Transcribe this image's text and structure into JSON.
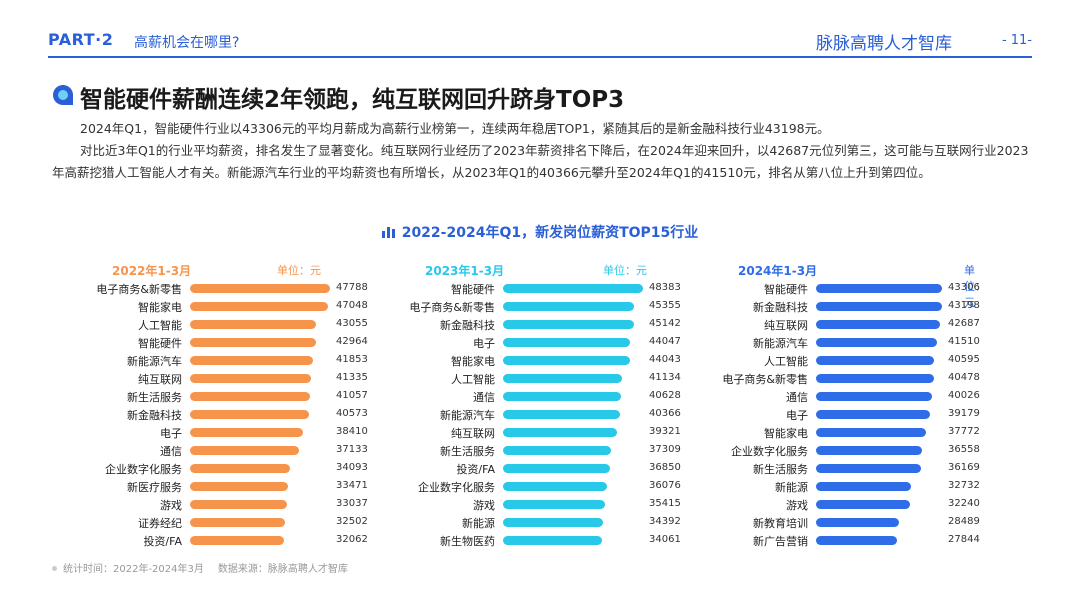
{
  "header": {
    "part": "PART·2",
    "section_question": "高薪机会在哪里?",
    "brand": "脉脉高聘人才智库",
    "page_number": "- 11-"
  },
  "headline": "智能硬件薪酬连续2年领跑，纯互联网回升跻身TOP3",
  "paragraphs": [
    "2024年Q1，智能硬件行业以43306元的平均月薪成为高薪行业榜第一，连续两年稳居TOP1，紧随其后的是新金融科技行业43198元。",
    "对比近3年Q1的行业平均薪资，排名发生了显著变化。纯互联网行业经历了2023年薪资排名下降后，在2024年迎来回升，以42687元位列第三，这可能与互联网行业2023年高薪挖猎人工智能人才有关。新能源汽车行业的平均薪资也有所增长，从2023年Q1的40366元攀升至2024年Q1的41510元，排名从第八位上升到第四位。"
  ],
  "chart_title": "2022-2024年Q1，新发岗位薪资TOP15行业",
  "colors": {
    "brand": "#2a5fd8"
  },
  "chart_data": [
    {
      "type": "bar",
      "orientation": "horizontal",
      "title": "2022年1-3月",
      "unit": "单位：元",
      "color": "#f7944c",
      "categories": [
        "电子商务&新零售",
        "智能家电",
        "人工智能",
        "智能硬件",
        "新能源汽车",
        "纯互联网",
        "新生活服务",
        "新金融科技",
        "电子",
        "通信",
        "企业数字化服务",
        "新医疗服务",
        "游戏",
        "证券经纪",
        "投资/FA"
      ],
      "values": [
        47788,
        47048,
        43055,
        42964,
        41853,
        41335,
        41057,
        40573,
        38410,
        37133,
        34093,
        33471,
        33037,
        32502,
        32062
      ]
    },
    {
      "type": "bar",
      "orientation": "horizontal",
      "title": "2023年1-3月",
      "unit": "单位：元",
      "color": "#28c8e8",
      "categories": [
        "智能硬件",
        "电子商务&新零售",
        "新金融科技",
        "电子",
        "智能家电",
        "人工智能",
        "通信",
        "新能源汽车",
        "纯互联网",
        "新生活服务",
        "投资/FA",
        "企业数字化服务",
        "游戏",
        "新能源",
        "新生物医药"
      ],
      "values": [
        48383,
        45355,
        45142,
        44047,
        44043,
        41134,
        40628,
        40366,
        39321,
        37309,
        36850,
        36076,
        35415,
        34392,
        34061
      ]
    },
    {
      "type": "bar",
      "orientation": "horizontal",
      "title": "2024年1-3月",
      "unit": "单位：元",
      "color": "#2f6de8",
      "categories": [
        "智能硬件",
        "新金融科技",
        "纯互联网",
        "新能源汽车",
        "人工智能",
        "电子商务&新零售",
        "通信",
        "电子",
        "智能家电",
        "企业数字化服务",
        "新生活服务",
        "新能源",
        "游戏",
        "新教育培训",
        "新广告营销"
      ],
      "values": [
        43306,
        43198,
        42687,
        41510,
        40595,
        40478,
        40026,
        39179,
        37772,
        36558,
        36169,
        32732,
        32240,
        28489,
        27844
      ]
    }
  ],
  "footer": {
    "stat_time": "统计时间：2022年-2024年3月",
    "source": "数据来源：脉脉高聘人才智库"
  }
}
